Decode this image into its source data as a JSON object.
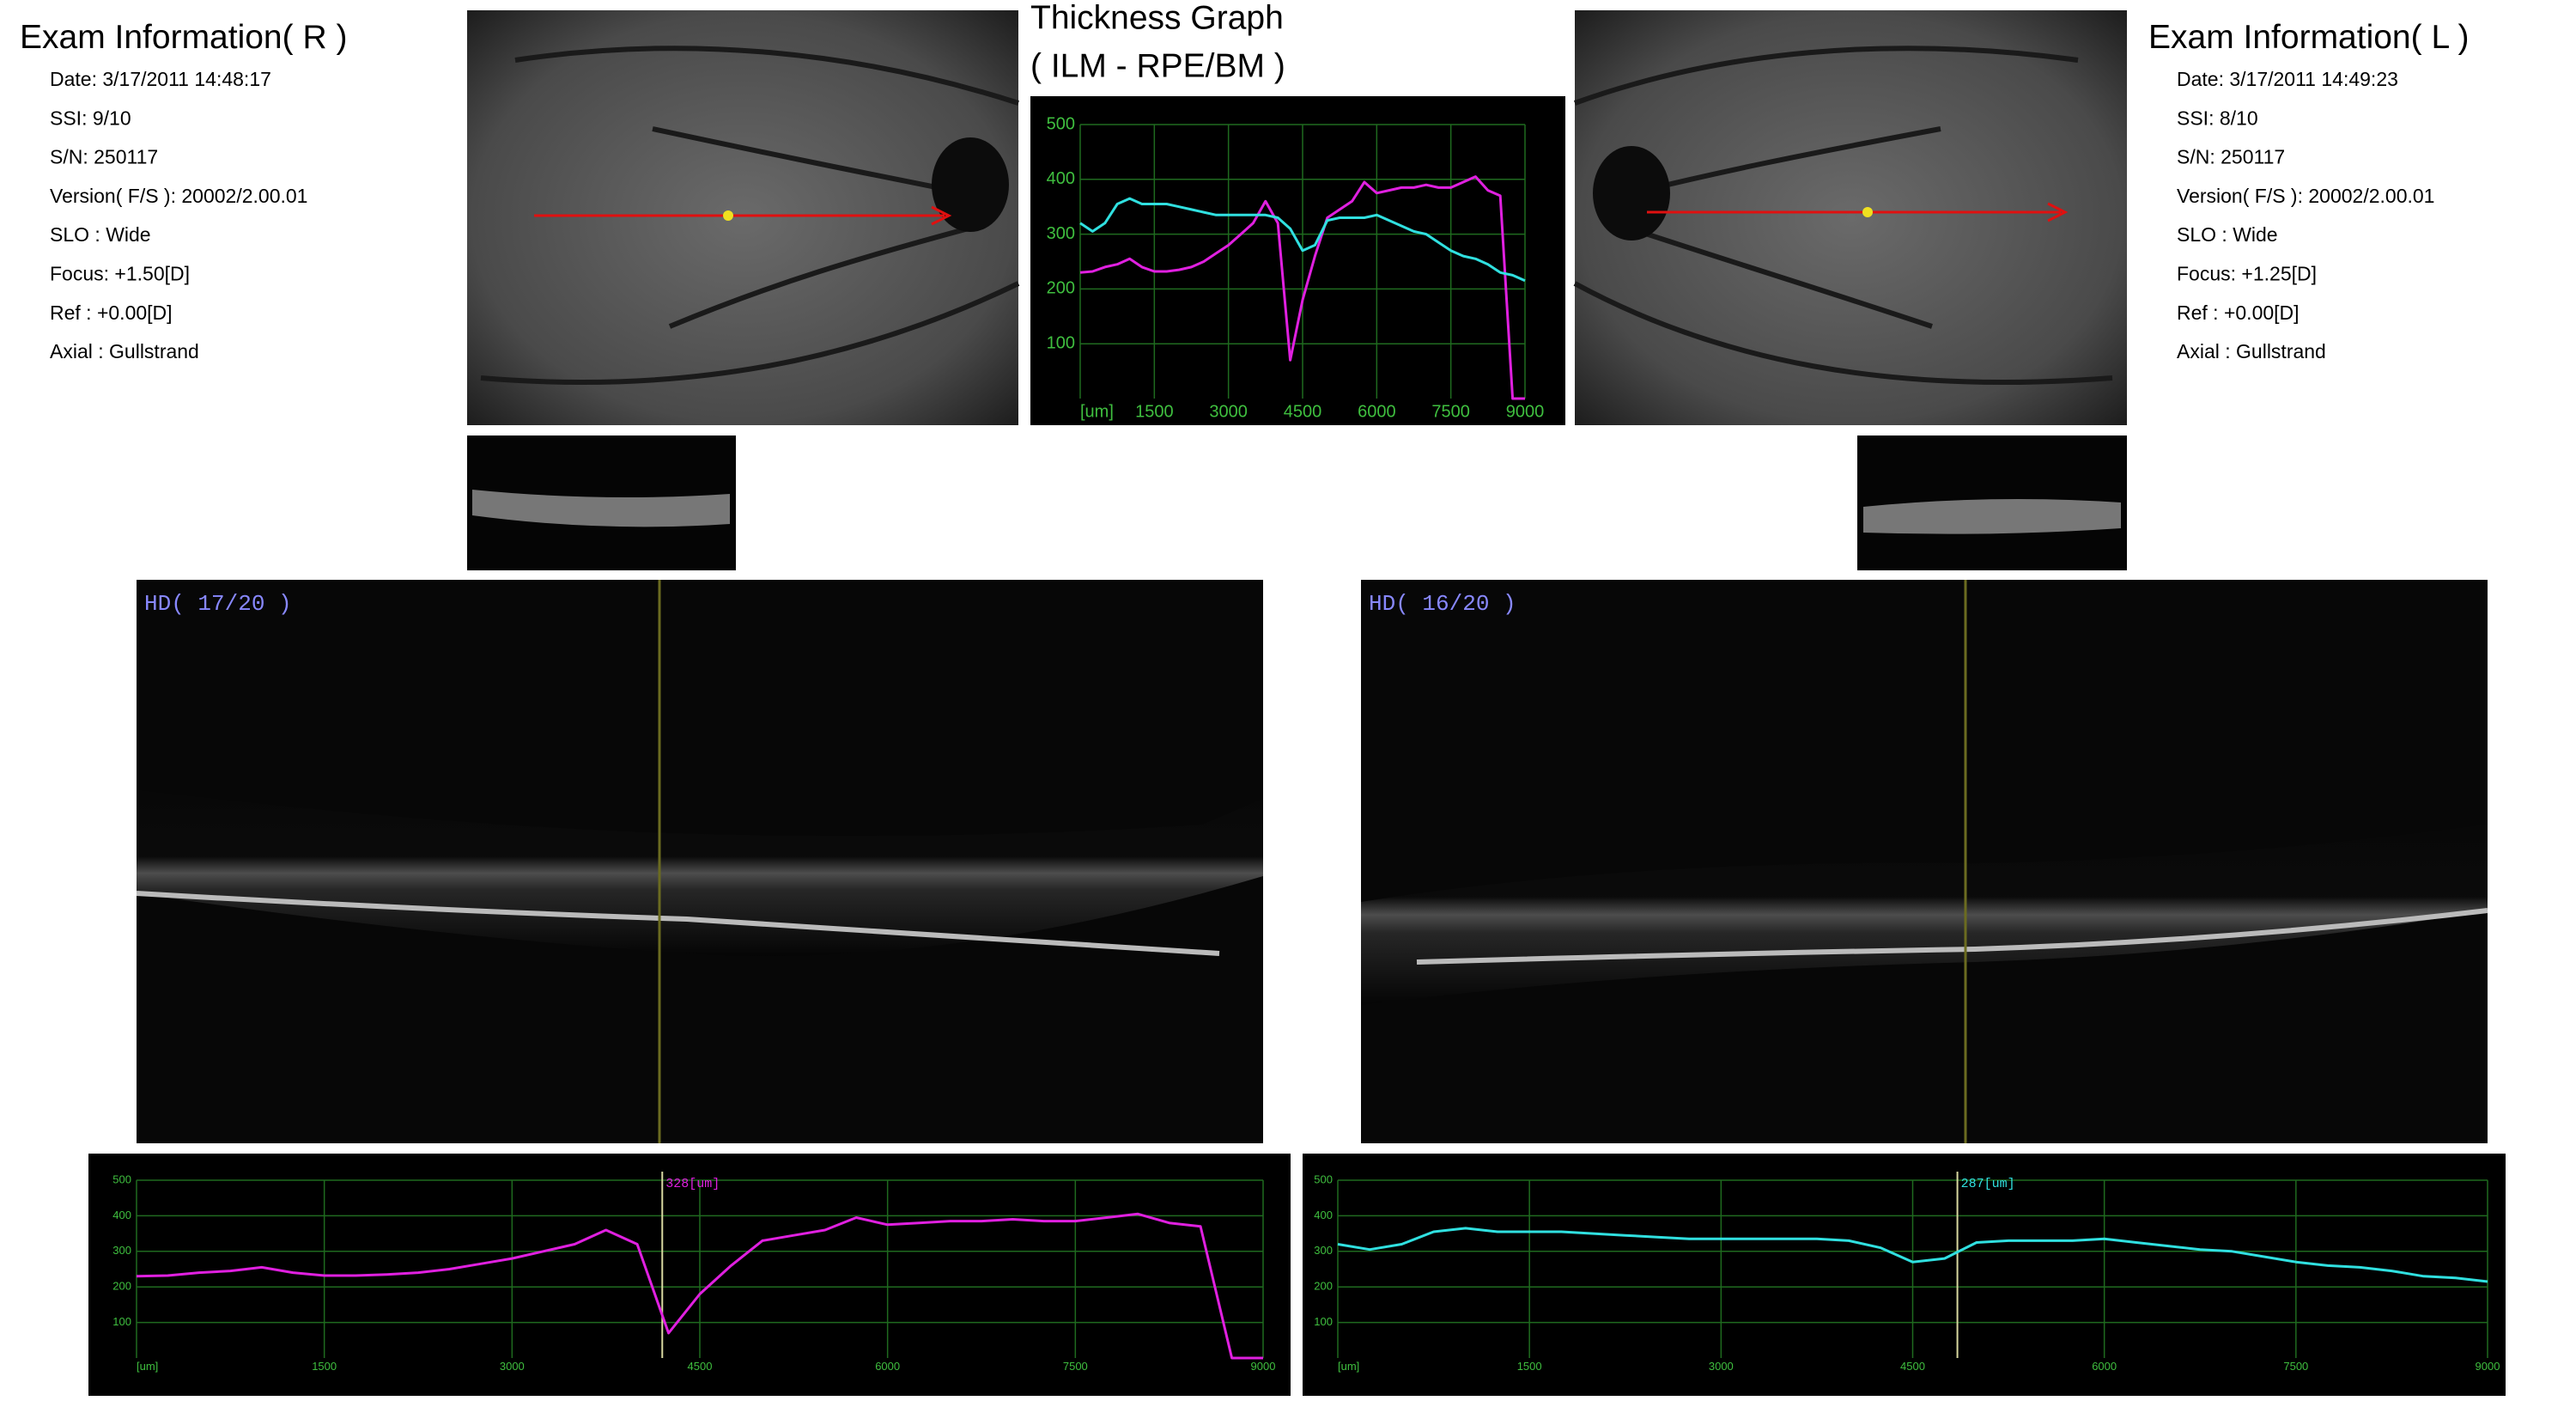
{
  "exam_right": {
    "title": "Exam Information( R )",
    "fields": [
      "Date: 3/17/2011 14:48:17",
      "SSI:  9/10",
      "S/N: 250117",
      "Version( F/S ): 20002/2.00.01",
      "SLO : Wide",
      "Focus: +1.50[D]",
      "Ref : +0.00[D]",
      "Axial : Gullstrand"
    ]
  },
  "exam_left": {
    "title": "Exam Information( L )",
    "fields": [
      "Date: 3/17/2011 14:49:23",
      "SSI:  8/10",
      "S/N: 250117",
      "Version( F/S ): 20002/2.00.01",
      "SLO : Wide",
      "Focus: +1.25[D]",
      "Ref : +0.00[D]",
      "Axial : Gullstrand"
    ]
  },
  "bscan_right": {
    "label": "HD( 17/20 )"
  },
  "bscan_left": {
    "label": "HD( 16/20 )"
  },
  "chart_data": [
    {
      "type": "line",
      "title": "Thickness Graph",
      "subtitle": "( ILM - RPE/BM )",
      "x": [
        0,
        250,
        500,
        750,
        1000,
        1250,
        1500,
        1750,
        2000,
        2250,
        2500,
        2750,
        3000,
        3250,
        3500,
        3750,
        4000,
        4250,
        4500,
        4750,
        5000,
        5250,
        5500,
        5750,
        6000,
        6250,
        6500,
        6750,
        7000,
        7250,
        7500,
        7750,
        8000,
        8250,
        8500,
        8750,
        9000
      ],
      "series": [
        {
          "color": "#e020e0",
          "values": [
            230,
            232,
            240,
            245,
            255,
            240,
            232,
            232,
            235,
            240,
            250,
            265,
            280,
            300,
            320,
            360,
            320,
            70,
            180,
            260,
            330,
            345,
            360,
            395,
            375,
            380,
            385,
            385,
            390,
            385,
            385,
            395,
            405,
            380,
            370,
            0,
            0
          ]
        },
        {
          "color": "#30e0e0",
          "values": [
            320,
            305,
            320,
            355,
            365,
            355,
            355,
            355,
            350,
            345,
            340,
            335,
            335,
            335,
            335,
            335,
            330,
            310,
            270,
            280,
            325,
            330,
            330,
            330,
            335,
            325,
            315,
            305,
            300,
            285,
            270,
            260,
            255,
            245,
            230,
            225,
            215
          ]
        }
      ],
      "xlim": [
        0,
        9000
      ],
      "ylim": [
        0,
        500
      ],
      "xticks": [
        {
          "value": 0,
          "label": "[um]"
        },
        1500,
        3000,
        4500,
        6000,
        7500,
        9000
      ],
      "yticks": [
        100,
        200,
        300,
        400,
        500
      ],
      "grid": true
    },
    {
      "type": "line",
      "x": [
        0,
        250,
        500,
        750,
        1000,
        1250,
        1500,
        1750,
        2000,
        2250,
        2500,
        2750,
        3000,
        3250,
        3500,
        3750,
        4000,
        4250,
        4500,
        4750,
        5000,
        5250,
        5500,
        5750,
        6000,
        6250,
        6500,
        6750,
        7000,
        7250,
        7500,
        7750,
        8000,
        8250,
        8500,
        8750,
        9000
      ],
      "series": [
        {
          "color": "#e020e0",
          "values": [
            230,
            232,
            240,
            245,
            255,
            240,
            232,
            232,
            235,
            240,
            250,
            265,
            280,
            300,
            320,
            360,
            320,
            70,
            180,
            260,
            330,
            345,
            360,
            395,
            375,
            380,
            385,
            385,
            390,
            385,
            385,
            395,
            405,
            380,
            370,
            0,
            0
          ]
        }
      ],
      "cursor": {
        "x": 4200,
        "label": "328[um]"
      },
      "xlim": [
        0,
        9000
      ],
      "ylim": [
        0,
        500
      ],
      "xticks": [
        {
          "value": 0,
          "label": "[um]"
        },
        1500,
        3000,
        4500,
        6000,
        7500,
        9000
      ],
      "yticks": [
        100,
        200,
        300,
        400,
        500
      ],
      "grid": true
    },
    {
      "type": "line",
      "x": [
        0,
        250,
        500,
        750,
        1000,
        1250,
        1500,
        1750,
        2000,
        2250,
        2500,
        2750,
        3000,
        3250,
        3500,
        3750,
        4000,
        4250,
        4500,
        4750,
        5000,
        5250,
        5500,
        5750,
        6000,
        6250,
        6500,
        6750,
        7000,
        7250,
        7500,
        7750,
        8000,
        8250,
        8500,
        8750,
        9000
      ],
      "series": [
        {
          "color": "#30e0e0",
          "values": [
            320,
            305,
            320,
            355,
            365,
            355,
            355,
            355,
            350,
            345,
            340,
            335,
            335,
            335,
            335,
            335,
            330,
            310,
            270,
            280,
            325,
            330,
            330,
            330,
            335,
            325,
            315,
            305,
            300,
            285,
            270,
            260,
            255,
            245,
            230,
            225,
            215
          ]
        }
      ],
      "cursor": {
        "x": 4850,
        "label": "287[um]"
      },
      "xlim": [
        0,
        9000
      ],
      "ylim": [
        0,
        500
      ],
      "xticks": [
        {
          "value": 0,
          "label": "[um]"
        },
        1500,
        3000,
        4500,
        6000,
        7500,
        9000
      ],
      "yticks": [
        100,
        200,
        300,
        400,
        500
      ],
      "grid": true
    }
  ]
}
